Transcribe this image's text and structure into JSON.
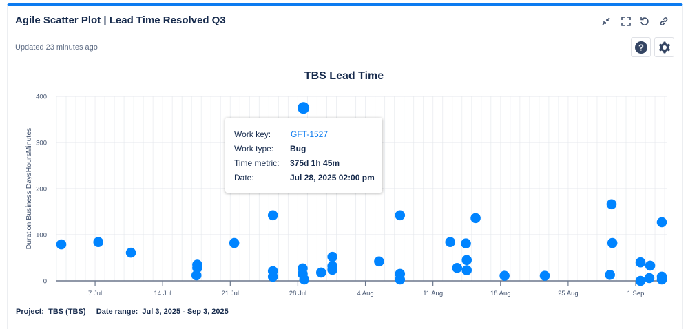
{
  "header": {
    "title": "Agile Scatter Plot | Lead Time Resolved Q3",
    "updated": "Updated 23 minutes ago",
    "icons": [
      "collapse-icon",
      "fullscreen-icon",
      "refresh-icon",
      "link-icon",
      "help-icon",
      "settings-icon"
    ]
  },
  "tooltip": {
    "work_key_label": "Work key:",
    "work_key": "GFT-1527",
    "work_type_label": "Work type:",
    "work_type": "Bug",
    "time_metric_label": "Time metric:",
    "time_metric": "375d 1h 45m",
    "date_label": "Date:",
    "date": "Jul 28, 2025 02:00 pm"
  },
  "footer": {
    "project_label": "Project:",
    "project": "TBS (TBS)",
    "date_range_label": "Date range:",
    "date_range": "Jul 3, 2025 - Sep 3, 2025"
  },
  "colors": {
    "accent": "#0c7bf0",
    "point": "#0084ff",
    "grid": "#e4e7ec",
    "axis": "#6b778c"
  },
  "chart_data": {
    "type": "scatter",
    "title": "TBS Lead Time",
    "xlabel": "",
    "ylabel": "Duration Business DaysHoursMinutes",
    "ylim": [
      0,
      400
    ],
    "yticks": [
      "0",
      "100",
      "200",
      "300",
      "400"
    ],
    "xlim": [
      "2025-07-03T00:00",
      "2025-09-04T05:00"
    ],
    "xticks": [
      {
        "date": "2025-07-07",
        "label": "7 Jul"
      },
      {
        "date": "2025-07-14",
        "label": "14 Jul"
      },
      {
        "date": "2025-07-21",
        "label": "21 Jul"
      },
      {
        "date": "2025-07-28",
        "label": "28 Jul"
      },
      {
        "date": "2025-08-04",
        "label": "4 Aug"
      },
      {
        "date": "2025-08-11",
        "label": "11 Aug"
      },
      {
        "date": "2025-08-18",
        "label": "18 Aug"
      },
      {
        "date": "2025-08-25",
        "label": "25 Aug"
      },
      {
        "date": "2025-09-01",
        "label": "1 Sep"
      }
    ],
    "grid": true,
    "points": [
      {
        "x": "2025-07-03T12:00",
        "y": 79
      },
      {
        "x": "2025-07-07T08:00",
        "y": 84
      },
      {
        "x": "2025-07-10T17:00",
        "y": 61
      },
      {
        "x": "2025-07-17T14:00",
        "y": 35
      },
      {
        "x": "2025-07-17T14:00",
        "y": 28
      },
      {
        "x": "2025-07-17T12:00",
        "y": 12
      },
      {
        "x": "2025-07-21T10:00",
        "y": 82
      },
      {
        "x": "2025-07-25T10:00",
        "y": 142
      },
      {
        "x": "2025-07-25T10:00",
        "y": 21
      },
      {
        "x": "2025-07-25T10:00",
        "y": 9
      },
      {
        "x": "2025-07-28T14:00",
        "y": 375
      },
      {
        "x": "2025-07-28T12:00",
        "y": 27
      },
      {
        "x": "2025-07-28T12:00",
        "y": 15
      },
      {
        "x": "2025-07-28T16:00",
        "y": 3
      },
      {
        "x": "2025-07-30T10:00",
        "y": 18
      },
      {
        "x": "2025-07-31T14:00",
        "y": 52
      },
      {
        "x": "2025-07-31T14:00",
        "y": 32
      },
      {
        "x": "2025-07-31T14:00",
        "y": 24
      },
      {
        "x": "2025-08-05T10:00",
        "y": 42
      },
      {
        "x": "2025-08-07T14:00",
        "y": 142
      },
      {
        "x": "2025-08-07T14:00",
        "y": 15
      },
      {
        "x": "2025-08-07T14:00",
        "y": 3
      },
      {
        "x": "2025-08-12T19:00",
        "y": 84
      },
      {
        "x": "2025-08-13T12:00",
        "y": 28
      },
      {
        "x": "2025-08-14T10:00",
        "y": 81
      },
      {
        "x": "2025-08-14T12:00",
        "y": 45
      },
      {
        "x": "2025-08-14T12:00",
        "y": 23
      },
      {
        "x": "2025-08-15T10:00",
        "y": 136
      },
      {
        "x": "2025-08-18T10:00",
        "y": 11
      },
      {
        "x": "2025-08-22T14:00",
        "y": 11
      },
      {
        "x": "2025-08-29T12:00",
        "y": 166
      },
      {
        "x": "2025-08-29T14:00",
        "y": 82
      },
      {
        "x": "2025-08-29T08:00",
        "y": 13
      },
      {
        "x": "2025-09-01T12:00",
        "y": 40
      },
      {
        "x": "2025-09-01T12:00",
        "y": 0
      },
      {
        "x": "2025-09-02T12:00",
        "y": 33
      },
      {
        "x": "2025-09-02T10:00",
        "y": 6
      },
      {
        "x": "2025-09-03T17:00",
        "y": 127
      },
      {
        "x": "2025-09-03T17:00",
        "y": 9
      },
      {
        "x": "2025-09-03T17:00",
        "y": 3
      }
    ]
  }
}
